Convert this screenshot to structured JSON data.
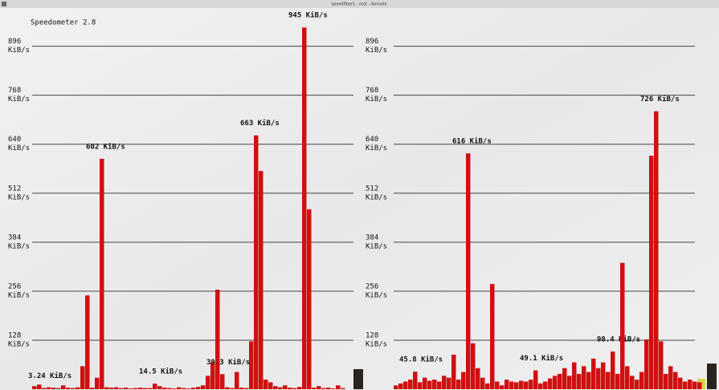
{
  "window_title": "speedfiber1 : root - Konsole",
  "app_title": "Speedometer 2.8",
  "chart_data": [
    {
      "type": "bar",
      "unit": "KiB/s",
      "color": "#d01010",
      "grid": true,
      "ylim": [
        0,
        1000
      ],
      "yticks": [
        128,
        256,
        384,
        512,
        640,
        768,
        896
      ],
      "values": [
        8,
        12,
        3.24,
        5,
        4,
        3,
        10,
        4,
        3,
        5,
        60,
        245,
        4,
        30,
        602,
        5,
        4,
        5,
        3,
        4,
        2,
        3,
        4,
        3,
        3,
        14.5,
        8,
        4,
        3,
        2,
        5,
        3,
        2,
        4,
        6,
        10,
        35,
        70,
        260,
        39.3,
        5,
        3,
        45,
        4,
        3,
        125,
        663,
        570,
        25,
        18,
        8,
        5,
        10,
        4,
        3,
        6,
        945,
        470,
        4,
        8,
        3,
        4,
        2,
        10,
        3
      ],
      "value_labels": [
        null,
        null,
        "3.24 KiB/s",
        null,
        null,
        null,
        null,
        null,
        null,
        null,
        null,
        null,
        null,
        null,
        "602 KiB/s",
        null,
        null,
        null,
        null,
        null,
        null,
        null,
        null,
        null,
        null,
        "14.5 KiB/s",
        null,
        null,
        null,
        null,
        null,
        null,
        null,
        null,
        null,
        null,
        null,
        null,
        null,
        "39.3 KiB/s",
        null,
        null,
        null,
        null,
        null,
        null,
        "663 KiB/s",
        null,
        null,
        null,
        null,
        null,
        null,
        null,
        null,
        null,
        "945 KiB/s",
        null,
        null,
        null,
        null,
        null,
        null,
        null,
        null
      ]
    },
    {
      "type": "bar",
      "unit": "KiB/s",
      "color": "#d01010",
      "grid": true,
      "ylim": [
        0,
        1000
      ],
      "yticks": [
        128,
        256,
        384,
        512,
        640,
        768,
        896
      ],
      "values": [
        10,
        15,
        20,
        25,
        45.8,
        18,
        30,
        22,
        25,
        20,
        35,
        30,
        90,
        25,
        45,
        616,
        120,
        55,
        30,
        15,
        275,
        20,
        10,
        25,
        20,
        18,
        22,
        20,
        25,
        49.1,
        15,
        20,
        28,
        35,
        40,
        55,
        35,
        70,
        40,
        60,
        45,
        80,
        55,
        70,
        45,
        98.4,
        40,
        330,
        60,
        35,
        25,
        45,
        130,
        610,
        726,
        125,
        40,
        60,
        45,
        30,
        20,
        25,
        20,
        18
      ],
      "value_labels": [
        null,
        null,
        null,
        null,
        "45.8 KiB/s",
        null,
        null,
        null,
        null,
        null,
        null,
        null,
        null,
        null,
        null,
        "616 KiB/s",
        null,
        null,
        null,
        null,
        null,
        null,
        null,
        null,
        null,
        null,
        null,
        null,
        null,
        "49.1 KiB/s",
        null,
        null,
        null,
        null,
        null,
        null,
        null,
        null,
        null,
        null,
        null,
        null,
        null,
        null,
        null,
        "98.4 KiB/s",
        null,
        null,
        null,
        null,
        null,
        null,
        null,
        null,
        "726 KiB/s",
        null,
        null,
        null,
        null,
        null,
        null,
        null,
        null,
        null
      ]
    }
  ]
}
